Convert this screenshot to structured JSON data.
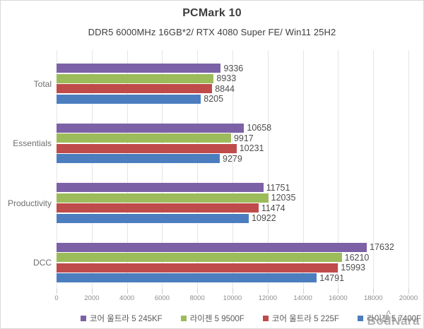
{
  "title": "PCMark 10",
  "subtitle": "DDR5 6000MHz 16GB*2/ RTX 4080 Super FE/ Win11 25H2",
  "watermark": "BodNara",
  "chart_data": {
    "type": "bar",
    "orientation": "horizontal",
    "title": "PCMark 10",
    "subtitle": "DDR5 6000MHz 16GB*2/ RTX 4080 Super FE/ Win11 25H2",
    "categories": [
      "Total",
      "Essentials",
      "Productivity",
      "DCC"
    ],
    "series": [
      {
        "name": "코어 울트라 5 245KF",
        "color": "#7c61a6",
        "values": [
          9336,
          10658,
          11751,
          17632
        ]
      },
      {
        "name": "라이젠 5 9500F",
        "color": "#9cbb5b",
        "values": [
          8933,
          9917,
          12035,
          16210
        ]
      },
      {
        "name": "코어 울트라 5 225F",
        "color": "#c04b4b",
        "values": [
          8844,
          10231,
          11474,
          15993
        ]
      },
      {
        "name": "라이젠 5 7400F",
        "color": "#4c7ebf",
        "values": [
          8205,
          9279,
          10922,
          14791
        ]
      }
    ],
    "xlim": [
      0,
      20000
    ],
    "x_ticks": [
      0,
      2000,
      4000,
      6000,
      8000,
      10000,
      12000,
      14000,
      16000,
      18000,
      20000
    ],
    "grid": true,
    "legend_position": "bottom"
  }
}
